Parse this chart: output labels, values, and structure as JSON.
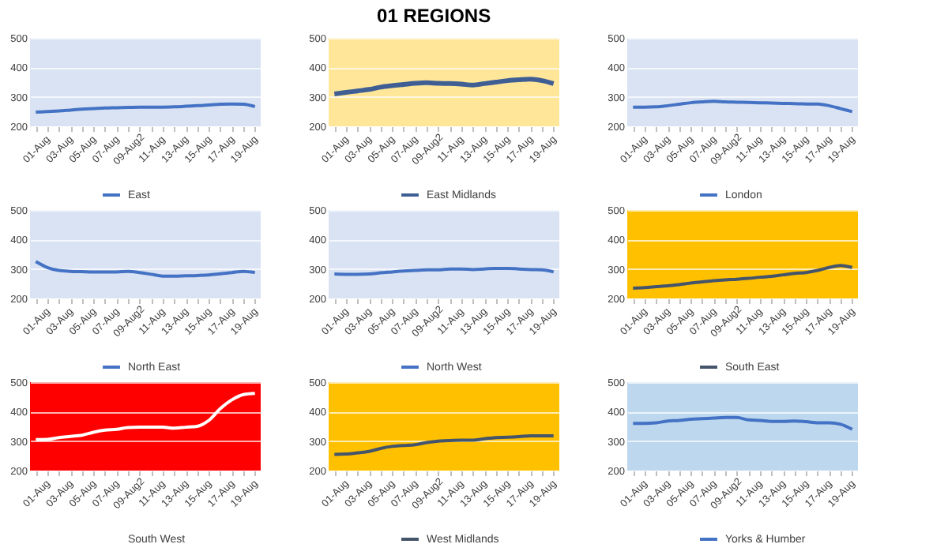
{
  "chart_data": [
    {
      "type": "line",
      "categories": [
        "01-Aug",
        null,
        "03-Aug",
        null,
        "05-Aug",
        null,
        "07-Aug",
        null,
        "09-Aug2",
        null,
        "11-Aug",
        null,
        "13-Aug",
        null,
        "15-Aug",
        null,
        "17-Aug",
        null,
        "19-Aug",
        null
      ],
      "series": [
        {
          "name": "East",
          "color": "#4472c4",
          "values": [
            248,
            250,
            252,
            255,
            258,
            260,
            262,
            263,
            264,
            265,
            265,
            265,
            266,
            268,
            270,
            272,
            275,
            276,
            275,
            267
          ]
        }
      ],
      "ylim": [
        200,
        500
      ],
      "yticks": [
        200,
        300,
        400,
        500
      ],
      "grid": "y",
      "legend": "bottom"
    },
    {
      "type": "line",
      "title": "01 REGIONS",
      "categories": [
        "01-Aug",
        null,
        "03-Aug",
        null,
        "05-Aug",
        null,
        "07-Aug",
        null,
        "09-Aug2",
        null,
        "11-Aug",
        null,
        "13-Aug",
        null,
        "15-Aug",
        null,
        "17-Aug",
        null,
        "19-Aug",
        null
      ],
      "series": [
        {
          "name": "East Midlands",
          "color": "#3f5f94",
          "values": [
            310,
            315,
            320,
            325,
            333,
            338,
            342,
            346,
            348,
            346,
            345,
            343,
            340,
            345,
            350,
            355,
            358,
            360,
            355,
            345
          ]
        }
      ],
      "ylim": [
        200,
        500
      ],
      "yticks": [
        200,
        300,
        400,
        500
      ],
      "grid": "y",
      "legend": "bottom"
    },
    {
      "type": "line",
      "categories": [
        "01-Aug",
        null,
        "03-Aug",
        null,
        "05-Aug",
        null,
        "07-Aug",
        null,
        "09-Aug2",
        null,
        "11-Aug",
        null,
        "13-Aug",
        null,
        "15-Aug",
        null,
        "17-Aug",
        null,
        "19-Aug",
        null
      ],
      "series": [
        {
          "name": "London",
          "color": "#4472c4",
          "values": [
            265,
            265,
            266,
            270,
            275,
            280,
            283,
            285,
            283,
            282,
            281,
            280,
            279,
            278,
            277,
            276,
            276,
            270,
            260,
            250
          ]
        }
      ],
      "ylim": [
        200,
        500
      ],
      "yticks": [
        200,
        300,
        400,
        500
      ],
      "grid": "y",
      "legend": "bottom"
    },
    {
      "type": "line",
      "categories": [
        "01-Aug",
        null,
        "03-Aug",
        null,
        "05-Aug",
        null,
        "07-Aug",
        null,
        "09-Aug2",
        null,
        "11-Aug",
        null,
        "13-Aug",
        null,
        "15-Aug",
        null,
        "17-Aug",
        null,
        "19-Aug",
        null
      ],
      "series": [
        {
          "name": "North East",
          "color": "#4472c4",
          "values": [
            325,
            305,
            295,
            292,
            291,
            290,
            290,
            290,
            292,
            288,
            282,
            276,
            276,
            277,
            278,
            280,
            284,
            288,
            292,
            288
          ]
        }
      ],
      "ylim": [
        200,
        500
      ],
      "yticks": [
        200,
        300,
        400,
        500
      ],
      "grid": "y",
      "legend": "bottom"
    },
    {
      "type": "line",
      "categories": [
        "01-Aug",
        null,
        "03-Aug",
        null,
        "05-Aug",
        null,
        "07-Aug",
        null,
        "09-Aug2",
        null,
        "11-Aug",
        null,
        "13-Aug",
        null,
        "15-Aug",
        null,
        "17-Aug",
        null,
        "19-Aug",
        null
      ],
      "series": [
        {
          "name": "North West",
          "color": "#4472c4",
          "values": [
            283,
            282,
            282,
            283,
            287,
            290,
            293,
            295,
            297,
            297,
            300,
            300,
            298,
            300,
            302,
            302,
            300,
            298,
            297,
            290
          ]
        }
      ],
      "ylim": [
        200,
        500
      ],
      "yticks": [
        200,
        300,
        400,
        500
      ],
      "grid": "y",
      "legend": "bottom"
    },
    {
      "type": "line",
      "categories": [
        "01-Aug",
        null,
        "03-Aug",
        null,
        "05-Aug",
        null,
        "07-Aug",
        null,
        "09-Aug2",
        null,
        "11-Aug",
        null,
        "13-Aug",
        null,
        "15-Aug",
        null,
        "17-Aug",
        null,
        "19-Aug",
        null
      ],
      "series": [
        {
          "name": "South East",
          "color": "#44546a",
          "values": [
            235,
            237,
            240,
            243,
            247,
            252,
            256,
            260,
            263,
            265,
            268,
            272,
            275,
            280,
            285,
            288,
            295,
            305,
            312,
            305
          ]
        }
      ],
      "ylim": [
        200,
        500
      ],
      "yticks": [
        200,
        300,
        400,
        500
      ],
      "grid": "y",
      "legend": "bottom"
    },
    {
      "type": "line",
      "categories": [
        "01-Aug",
        null,
        "03-Aug",
        null,
        "05-Aug",
        null,
        "07-Aug",
        null,
        "09-Aug2",
        null,
        "11-Aug",
        null,
        "13-Aug",
        null,
        "15-Aug",
        null,
        "17-Aug",
        null,
        "19-Aug",
        null
      ],
      "series": [
        {
          "name": "South West",
          "color": "#ffffff",
          "values": [
            305,
            306,
            312,
            316,
            320,
            330,
            337,
            340,
            346,
            347,
            347,
            347,
            344,
            347,
            350,
            370,
            410,
            440,
            458,
            462
          ]
        }
      ],
      "ylim": [
        200,
        500
      ],
      "yticks": [
        200,
        300,
        400,
        500
      ],
      "grid": "y",
      "legend": "bottom"
    },
    {
      "type": "line",
      "categories": [
        "01-Aug",
        null,
        "03-Aug",
        null,
        "05-Aug",
        null,
        "07-Aug",
        null,
        "09-Aug2",
        null,
        "11-Aug",
        null,
        "13-Aug",
        null,
        "15-Aug",
        null,
        "17-Aug",
        null,
        "19-Aug",
        null
      ],
      "series": [
        {
          "name": "West Midlands",
          "color": "#44546a",
          "values": [
            255,
            256,
            260,
            265,
            275,
            282,
            285,
            288,
            295,
            300,
            302,
            303,
            303,
            308,
            312,
            313,
            315,
            318,
            318,
            318
          ]
        }
      ],
      "ylim": [
        200,
        500
      ],
      "yticks": [
        200,
        300,
        400,
        500
      ],
      "grid": "y",
      "legend": "bottom"
    },
    {
      "type": "line",
      "categories": [
        "01-Aug",
        null,
        "03-Aug",
        null,
        "05-Aug",
        null,
        "07-Aug",
        null,
        "09-Aug2",
        null,
        "11-Aug",
        null,
        "13-Aug",
        null,
        "15-Aug",
        null,
        "17-Aug",
        null,
        "19-Aug",
        null
      ],
      "series": [
        {
          "name": "Yorks & Humber",
          "color": "#4472c4",
          "values": [
            360,
            360,
            362,
            368,
            370,
            374,
            376,
            378,
            380,
            380,
            372,
            370,
            367,
            367,
            368,
            366,
            362,
            362,
            357,
            340
          ]
        }
      ],
      "ylim": [
        200,
        500
      ],
      "yticks": [
        200,
        300,
        400,
        500
      ],
      "grid": "y",
      "legend": "bottom"
    }
  ]
}
